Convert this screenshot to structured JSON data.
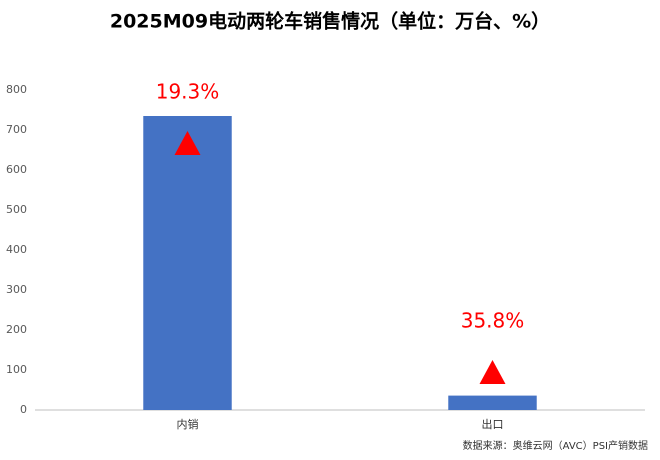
{
  "chart_data": {
    "type": "bar",
    "title": "2025M09电动两轮车销售情况（单位：万台、%）",
    "categories": [
      "内销",
      "出口"
    ],
    "values": [
      735,
      36
    ],
    "color": "#4472c4",
    "ylim": [
      0,
      800
    ],
    "yticks": [
      0,
      100,
      200,
      300,
      400,
      500,
      600,
      700,
      800
    ],
    "grid": false,
    "annotations": [
      {
        "value": 19.3,
        "label": "19.3%"
      },
      {
        "value": 35.8,
        "label": "35.8%"
      }
    ],
    "annotation_color": "#ff0000",
    "source": "数据来源：奥维云网（AVC）PSI产销数据"
  }
}
